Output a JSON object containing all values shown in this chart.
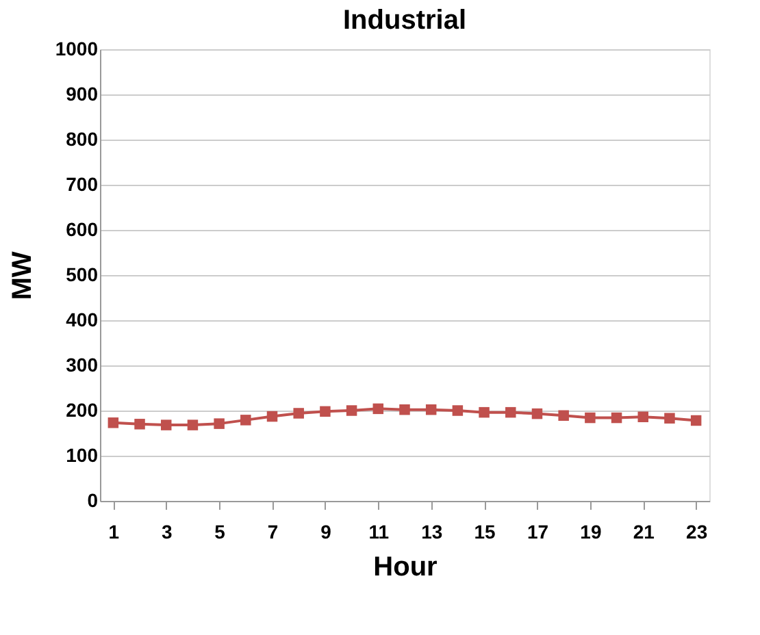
{
  "chart_data": {
    "type": "line",
    "title": "Industrial",
    "xlabel": "Hour",
    "ylabel": "MW",
    "x": [
      1,
      2,
      3,
      4,
      5,
      6,
      7,
      8,
      9,
      10,
      11,
      12,
      13,
      14,
      15,
      16,
      17,
      18,
      19,
      20,
      21,
      22,
      23
    ],
    "series": [
      {
        "color": "#c0504d",
        "values": [
          173,
          170,
          168,
          168,
          171,
          179,
          187,
          194,
          198,
          200,
          204,
          202,
          202,
          200,
          196,
          196,
          193,
          189,
          184,
          184,
          186,
          183,
          178
        ]
      }
    ],
    "xlim": [
      0.5,
      23.5
    ],
    "xticks": [
      1,
      3,
      5,
      7,
      9,
      11,
      13,
      15,
      17,
      19,
      21,
      23
    ],
    "ylim": [
      0,
      1000
    ],
    "yticks": [
      0,
      100,
      200,
      300,
      400,
      500,
      600,
      700,
      800,
      900,
      1000
    ],
    "grid": "y",
    "marker": "square",
    "line_style": "solid"
  }
}
